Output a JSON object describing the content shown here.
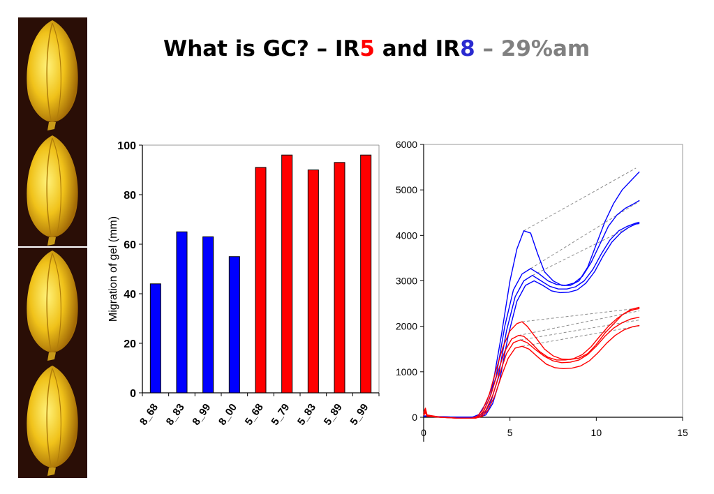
{
  "slide": {
    "title_parts": [
      {
        "text": "What is GC? – IR",
        "color": "#000000"
      },
      {
        "text": "5",
        "color": "#ff0000"
      },
      {
        "text": " and IR",
        "color": "#000000"
      },
      {
        "text": "8",
        "color": "#2a2ad0"
      },
      {
        "text": " – 29%am",
        "color": "#808080"
      }
    ]
  },
  "colors": {
    "blue": "#0000ff",
    "red": "#ff0000",
    "gray_dash": "#8c8c8c"
  },
  "chart_data": [
    {
      "type": "bar",
      "categories": [
        "8_68",
        "8_83",
        "8_99",
        "8_00",
        "5_68",
        "5_79",
        "5_83",
        "5_89",
        "5_99"
      ],
      "values": [
        44,
        65,
        63,
        55,
        91,
        96,
        90,
        93,
        96
      ],
      "bar_colors": [
        "#0000ff",
        "#0000ff",
        "#0000ff",
        "#0000ff",
        "#ff0000",
        "#ff0000",
        "#ff0000",
        "#ff0000",
        "#ff0000"
      ],
      "ylabel": "Migration of gel (mm)",
      "ylim": [
        0,
        100
      ],
      "yticks": [
        0,
        20,
        40,
        60,
        80,
        100
      ]
    },
    {
      "type": "line",
      "xlim": [
        0,
        15
      ],
      "ylim": [
        0,
        6000
      ],
      "xticks": [
        0,
        5,
        10,
        15
      ],
      "yticks": [
        0,
        1000,
        2000,
        3000,
        4000,
        5000,
        6000
      ],
      "series": [
        {
          "color": "#0000ff",
          "points": [
            [
              0,
              30
            ],
            [
              1,
              10
            ],
            [
              2,
              0
            ],
            [
              2.8,
              0
            ],
            [
              3.2,
              60
            ],
            [
              3.6,
              300
            ],
            [
              4,
              700
            ],
            [
              4.5,
              1800
            ],
            [
              5,
              3000
            ],
            [
              5.4,
              3700
            ],
            [
              5.8,
              4100
            ],
            [
              6.2,
              4050
            ],
            [
              6.6,
              3600
            ],
            [
              7,
              3200
            ],
            [
              7.5,
              3000
            ],
            [
              8,
              2900
            ],
            [
              8.5,
              2900
            ],
            [
              9,
              3000
            ],
            [
              9.5,
              3300
            ],
            [
              10,
              3800
            ],
            [
              10.5,
              4300
            ],
            [
              11,
              4700
            ],
            [
              11.5,
              5000
            ],
            [
              12,
              5200
            ],
            [
              12.5,
              5400
            ]
          ]
        },
        {
          "color": "#0000ff",
          "points": [
            [
              0,
              20
            ],
            [
              1,
              10
            ],
            [
              2,
              0
            ],
            [
              3,
              0
            ],
            [
              3.4,
              80
            ],
            [
              3.8,
              400
            ],
            [
              4.2,
              900
            ],
            [
              4.7,
              2000
            ],
            [
              5.2,
              2800
            ],
            [
              5.7,
              3150
            ],
            [
              6.2,
              3270
            ],
            [
              6.7,
              3150
            ],
            [
              7.2,
              3000
            ],
            [
              7.7,
              2920
            ],
            [
              8.2,
              2900
            ],
            [
              8.7,
              2950
            ],
            [
              9.2,
              3100
            ],
            [
              9.7,
              3400
            ],
            [
              10.2,
              3800
            ],
            [
              10.7,
              4200
            ],
            [
              11.2,
              4450
            ],
            [
              11.7,
              4600
            ],
            [
              12.2,
              4700
            ],
            [
              12.5,
              4770
            ]
          ]
        },
        {
          "color": "#0000ff",
          "points": [
            [
              0,
              20
            ],
            [
              1,
              10
            ],
            [
              2,
              0
            ],
            [
              3.1,
              0
            ],
            [
              3.5,
              60
            ],
            [
              3.9,
              350
            ],
            [
              4.3,
              850
            ],
            [
              4.8,
              1900
            ],
            [
              5.3,
              2650
            ],
            [
              5.8,
              3000
            ],
            [
              6.3,
              3120
            ],
            [
              6.8,
              3000
            ],
            [
              7.3,
              2880
            ],
            [
              7.8,
              2820
            ],
            [
              8.3,
              2820
            ],
            [
              8.8,
              2870
            ],
            [
              9.3,
              3000
            ],
            [
              9.8,
              3250
            ],
            [
              10.3,
              3600
            ],
            [
              10.8,
              3900
            ],
            [
              11.3,
              4100
            ],
            [
              11.8,
              4200
            ],
            [
              12.3,
              4270
            ],
            [
              12.5,
              4290
            ]
          ]
        },
        {
          "color": "#0000ff",
          "points": [
            [
              0,
              20
            ],
            [
              1,
              10
            ],
            [
              2,
              0
            ],
            [
              3.2,
              0
            ],
            [
              3.6,
              50
            ],
            [
              4,
              300
            ],
            [
              4.4,
              800
            ],
            [
              4.9,
              1800
            ],
            [
              5.4,
              2550
            ],
            [
              5.9,
              2900
            ],
            [
              6.4,
              3000
            ],
            [
              6.9,
              2900
            ],
            [
              7.4,
              2780
            ],
            [
              7.9,
              2740
            ],
            [
              8.4,
              2750
            ],
            [
              8.9,
              2800
            ],
            [
              9.4,
              2950
            ],
            [
              9.9,
              3200
            ],
            [
              10.4,
              3550
            ],
            [
              10.9,
              3850
            ],
            [
              11.4,
              4050
            ],
            [
              11.9,
              4180
            ],
            [
              12.3,
              4250
            ],
            [
              12.5,
              4260
            ]
          ]
        },
        {
          "color": "#ff0000",
          "points": [
            [
              0,
              100
            ],
            [
              0.1,
              200
            ],
            [
              0.2,
              50
            ],
            [
              1,
              0
            ],
            [
              2,
              -20
            ],
            [
              2.8,
              -20
            ],
            [
              3.1,
              20
            ],
            [
              3.4,
              150
            ],
            [
              3.8,
              500
            ],
            [
              4.2,
              1050
            ],
            [
              4.6,
              1550
            ],
            [
              5,
              1900
            ],
            [
              5.4,
              2060
            ],
            [
              5.7,
              2100
            ],
            [
              6,
              2000
            ],
            [
              6.5,
              1750
            ],
            [
              7,
              1500
            ],
            [
              7.5,
              1350
            ],
            [
              8,
              1280
            ],
            [
              8.5,
              1270
            ],
            [
              9,
              1300
            ],
            [
              9.5,
              1400
            ],
            [
              10,
              1600
            ],
            [
              10.5,
              1850
            ],
            [
              11,
              2050
            ],
            [
              11.5,
              2250
            ],
            [
              12,
              2370
            ],
            [
              12.5,
              2420
            ]
          ]
        },
        {
          "color": "#ff0000",
          "points": [
            [
              0,
              60
            ],
            [
              0.1,
              150
            ],
            [
              0.2,
              30
            ],
            [
              1,
              0
            ],
            [
              2,
              -20
            ],
            [
              2.9,
              -20
            ],
            [
              3.2,
              20
            ],
            [
              3.5,
              150
            ],
            [
              3.9,
              500
            ],
            [
              4.3,
              1000
            ],
            [
              4.7,
              1450
            ],
            [
              5.1,
              1720
            ],
            [
              5.5,
              1800
            ],
            [
              5.8,
              1780
            ],
            [
              6.2,
              1650
            ],
            [
              6.7,
              1450
            ],
            [
              7.2,
              1320
            ],
            [
              7.7,
              1260
            ],
            [
              8.2,
              1260
            ],
            [
              8.7,
              1290
            ],
            [
              9.2,
              1380
            ],
            [
              9.7,
              1550
            ],
            [
              10.2,
              1780
            ],
            [
              10.7,
              2000
            ],
            [
              11.2,
              2170
            ],
            [
              11.7,
              2300
            ],
            [
              12.2,
              2370
            ],
            [
              12.5,
              2390
            ]
          ]
        },
        {
          "color": "#ff0000",
          "points": [
            [
              0,
              50
            ],
            [
              0.1,
              120
            ],
            [
              0.2,
              20
            ],
            [
              1,
              0
            ],
            [
              2,
              -20
            ],
            [
              3,
              -20
            ],
            [
              3.3,
              20
            ],
            [
              3.6,
              150
            ],
            [
              4,
              480
            ],
            [
              4.4,
              950
            ],
            [
              4.8,
              1400
            ],
            [
              5.2,
              1640
            ],
            [
              5.6,
              1700
            ],
            [
              6,
              1640
            ],
            [
              6.5,
              1480
            ],
            [
              7,
              1340
            ],
            [
              7.5,
              1240
            ],
            [
              8,
              1200
            ],
            [
              8.5,
              1210
            ],
            [
              9,
              1260
            ],
            [
              9.5,
              1380
            ],
            [
              10,
              1560
            ],
            [
              10.5,
              1780
            ],
            [
              11,
              1960
            ],
            [
              11.5,
              2080
            ],
            [
              12,
              2160
            ],
            [
              12.5,
              2200
            ]
          ]
        },
        {
          "color": "#ff0000",
          "points": [
            [
              0,
              40
            ],
            [
              0.1,
              100
            ],
            [
              0.2,
              20
            ],
            [
              1,
              0
            ],
            [
              2,
              -20
            ],
            [
              3,
              -20
            ],
            [
              3.4,
              20
            ],
            [
              3.7,
              140
            ],
            [
              4.1,
              450
            ],
            [
              4.5,
              900
            ],
            [
              4.9,
              1300
            ],
            [
              5.3,
              1520
            ],
            [
              5.7,
              1560
            ],
            [
              6.1,
              1500
            ],
            [
              6.6,
              1330
            ],
            [
              7.1,
              1170
            ],
            [
              7.6,
              1090
            ],
            [
              8.1,
              1070
            ],
            [
              8.6,
              1080
            ],
            [
              9.1,
              1130
            ],
            [
              9.6,
              1240
            ],
            [
              10.1,
              1420
            ],
            [
              10.6,
              1630
            ],
            [
              11.1,
              1800
            ],
            [
              11.6,
              1920
            ],
            [
              12.1,
              1990
            ],
            [
              12.5,
              2020
            ]
          ]
        }
      ],
      "dashed_lines": [
        [
          [
            5.8,
            4100
          ],
          [
            12.3,
            5480
          ]
        ],
        [
          [
            6.2,
            3270
          ],
          [
            12.5,
            4750
          ]
        ],
        [
          [
            6.3,
            3120
          ],
          [
            12.5,
            4290
          ]
        ],
        [
          [
            5.7,
            2100
          ],
          [
            12.5,
            2400
          ]
        ],
        [
          [
            5.5,
            1800
          ],
          [
            12.5,
            2340
          ]
        ],
        [
          [
            5.6,
            1700
          ],
          [
            12.5,
            2140
          ]
        ],
        [
          [
            5.7,
            1560
          ],
          [
            12.5,
            2010
          ]
        ]
      ]
    }
  ]
}
